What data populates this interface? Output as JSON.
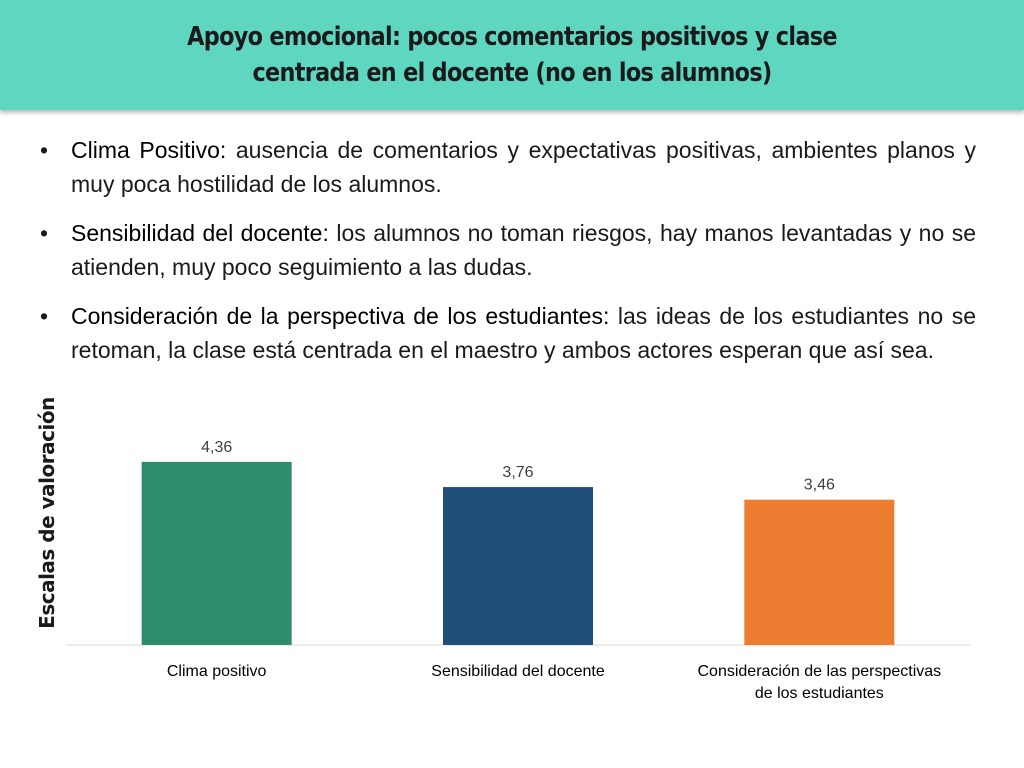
{
  "slide": {
    "title": "Apoyo emocional: pocos comentarios positivos y clase centrada en el docente (no en los alumnos)",
    "bullets": [
      {
        "term": "Clima Positivo:",
        "text": "ausencia de comentarios y expectativas positivas, ambientes planos y muy poca hostilidad de los alumnos."
      },
      {
        "term": "Sensibilidad del docente:",
        "text": "los alumnos no toman riesgos, hay manos levantadas y no se atienden, muy poco seguimiento a las dudas."
      },
      {
        "term": "Consideración de la perspectiva de los estudiantes:",
        "text": "las ideas de los estudiantes no se retoman, la clase está centrada en el maestro y ambos actores esperan que así sea."
      }
    ]
  },
  "chart_data": {
    "type": "bar",
    "ylabel": "Escalas de valoración",
    "categories": [
      [
        "Clima positivo"
      ],
      [
        "Sensibilidad del docente"
      ],
      [
        "Consideración de las perspectivas",
        "de los estudiantes"
      ]
    ],
    "values": [
      4.36,
      3.76,
      3.46
    ],
    "data_labels": [
      "4,36",
      "3,76",
      "3,46"
    ],
    "colors": [
      "#2e8b6e",
      "#1f4e79",
      "#ed7d31"
    ],
    "ylim": [
      0,
      6
    ],
    "grid": false,
    "legend": "none"
  }
}
